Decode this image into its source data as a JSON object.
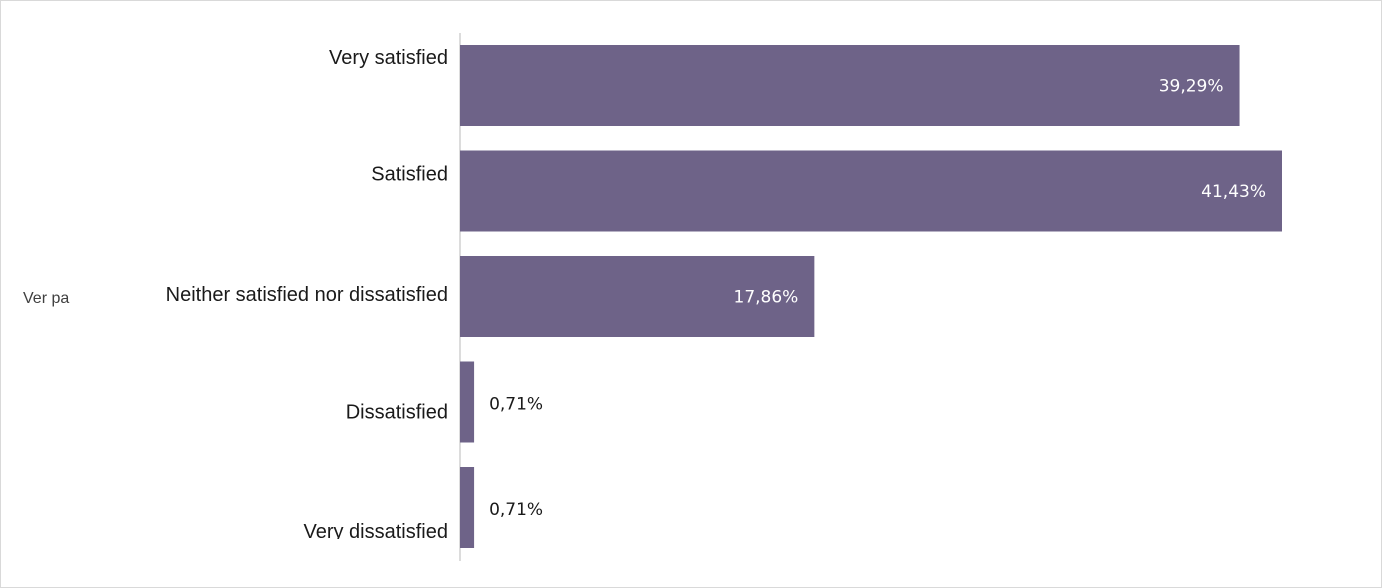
{
  "chart_data": {
    "type": "bar",
    "orientation": "horizontal",
    "categories": [
      "Very satisfied",
      "Satisfied",
      "Neither satisfied nor dissatisfied",
      "Dissatisfied",
      "Very dissatisfied"
    ],
    "values": [
      39.29,
      41.43,
      17.86,
      0.71,
      0.71
    ],
    "value_labels": [
      "39,29%",
      "41,43%",
      "17,86%",
      "0,71%",
      "0,71%"
    ],
    "xlim": [
      0,
      41.43
    ],
    "grid": false,
    "legend": "none",
    "bar_color": "#6e6388",
    "inside_label_color": "#ffffff",
    "outside_label_color": "#1a1a1a",
    "axis_color": "#d0d0d0",
    "partial_label": "Ver pa"
  }
}
